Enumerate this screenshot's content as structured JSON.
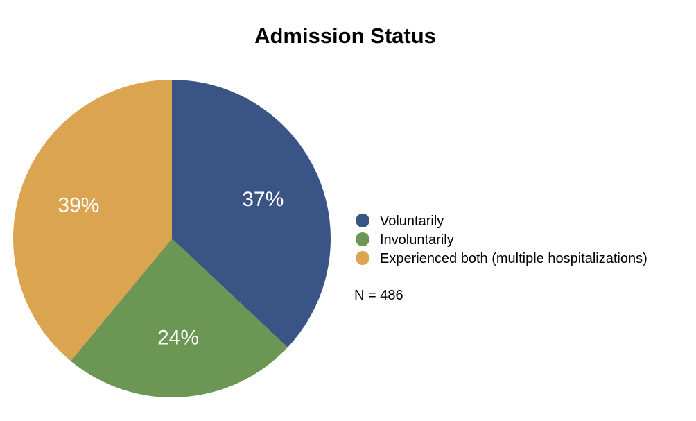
{
  "chart_data": {
    "type": "pie",
    "title": "Admission Status",
    "slices": [
      {
        "label": "Voluntarily",
        "value": 37,
        "display": "37%",
        "color": "#3a5585"
      },
      {
        "label": "Involuntarily",
        "value": 24,
        "display": "24%",
        "color": "#6b9653"
      },
      {
        "label": "Experienced both (multiple hospitalizations)",
        "value": 39,
        "display": "39%",
        "color": "#dba451"
      }
    ],
    "legend_position": "right",
    "annotation": "N = 486"
  }
}
